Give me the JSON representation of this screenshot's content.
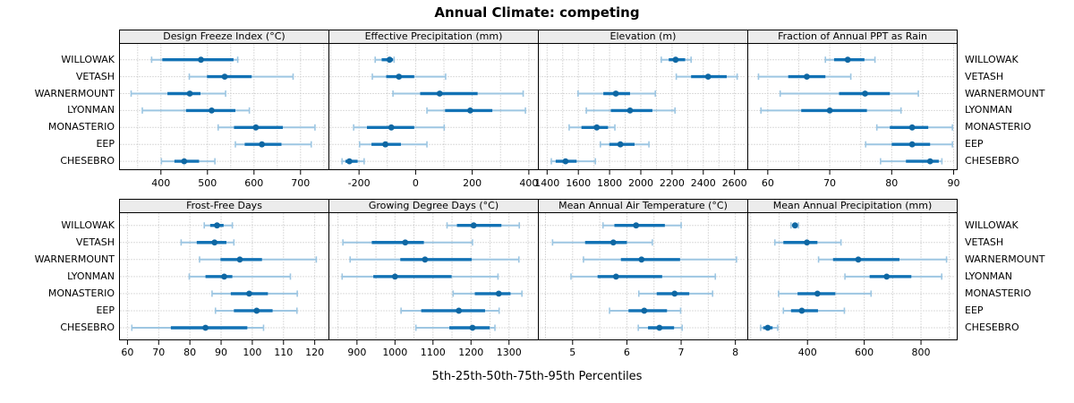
{
  "title": "Annual Climate: competing",
  "xlabel": "5th-25th-50th-75th-95th Percentiles",
  "sites": [
    "WILLOWAK",
    "VETASH",
    "WARNERMOUNT",
    "LYONMAN",
    "MONASTERIO",
    "EEP",
    "CHESEBRO"
  ],
  "colors": {
    "whisker": "#9dc6e2",
    "iqr": "#1272b5",
    "dot": "#0e67a3",
    "strip_bg": "#ececec",
    "grid": "#b8b8b8",
    "border": "#000000"
  },
  "chart_data": {
    "type": "dotplot-percentiles-trellis",
    "percentile_labels": [
      "5th",
      "25th",
      "50th",
      "75th",
      "95th"
    ],
    "layout": {
      "rows": 2,
      "cols": 4
    },
    "sites_top_to_bottom": [
      "WILLOWAK",
      "VETASH",
      "WARNERMOUNT",
      "LYONMAN",
      "MONASTERIO",
      "EEP",
      "CHESEBRO"
    ],
    "panels": [
      {
        "title": "Design Freeze Index (°C)",
        "row": 0,
        "col": 0,
        "xlim": [
          310,
          760
        ],
        "ticks": [
          400,
          500,
          600,
          700
        ],
        "gridlines": [
          350,
          400,
          450,
          500,
          550,
          600,
          650,
          700,
          750
        ],
        "values": [
          [
            380,
            403,
            486,
            556,
            565
          ],
          [
            461,
            499,
            537,
            595,
            684
          ],
          [
            336,
            414,
            462,
            485,
            539
          ],
          [
            360,
            454,
            509,
            560,
            590
          ],
          [
            523,
            557,
            604,
            662,
            731
          ],
          [
            560,
            580,
            617,
            659,
            723
          ],
          [
            401,
            429,
            450,
            482,
            516
          ]
        ]
      },
      {
        "title": "Effective Precipitation (mm)",
        "row": 0,
        "col": 1,
        "xlim": [
          -308,
          432
        ],
        "ticks": [
          -200,
          0,
          200,
          400
        ],
        "gridlines": [
          -300,
          -200,
          -100,
          0,
          100,
          200,
          300,
          400
        ],
        "values": [
          [
            -143,
            -120,
            -92,
            -80,
            -76
          ],
          [
            -153,
            -104,
            -59,
            -5,
            106
          ],
          [
            -80,
            16,
            85,
            219,
            380
          ],
          [
            40,
            104,
            193,
            271,
            388
          ],
          [
            -219,
            -172,
            -86,
            -5,
            101
          ],
          [
            -198,
            -156,
            -107,
            -52,
            40
          ],
          [
            -260,
            -248,
            -234,
            -205,
            -182
          ]
        ]
      },
      {
        "title": "Elevation (m)",
        "row": 0,
        "col": 2,
        "xlim": [
          1341,
          2682
        ],
        "ticks": [
          1400,
          1600,
          1800,
          2000,
          2200,
          2400,
          2600
        ],
        "gridlines": [
          1400,
          1500,
          1600,
          1700,
          1800,
          1900,
          2000,
          2100,
          2200,
          2300,
          2400,
          2500,
          2600
        ],
        "values": [
          [
            2131,
            2179,
            2223,
            2284,
            2322
          ],
          [
            2227,
            2322,
            2431,
            2550,
            2617
          ],
          [
            1598,
            1760,
            1840,
            1931,
            2093
          ],
          [
            1651,
            1808,
            1931,
            2074,
            2219
          ],
          [
            1541,
            1620,
            1718,
            1790,
            1834
          ],
          [
            1741,
            1798,
            1869,
            1960,
            2052
          ],
          [
            1427,
            1455,
            1518,
            1589,
            1709
          ]
        ]
      },
      {
        "title": "Fraction of Annual PPT as Rain",
        "row": 0,
        "col": 3,
        "xlim": [
          56.7,
          90.5
        ],
        "ticks": [
          60,
          70,
          80,
          90
        ],
        "gridlines": [
          60,
          65,
          70,
          75,
          80,
          85,
          90
        ],
        "values": [
          [
            69.3,
            70.7,
            72.9,
            75.6,
            77.3
          ],
          [
            58.5,
            63.3,
            66.3,
            69.3,
            73.4
          ],
          [
            62.0,
            71.5,
            75.7,
            79.7,
            84.3
          ],
          [
            58.9,
            65.4,
            70.0,
            76.0,
            81.5
          ],
          [
            77.6,
            79.7,
            83.3,
            85.9,
            89.8
          ],
          [
            75.8,
            80.0,
            83.3,
            86.2,
            89.8
          ],
          [
            78.2,
            82.3,
            86.2,
            87.6,
            88.1
          ]
        ]
      },
      {
        "title": "Frost-Free Days",
        "row": 1,
        "col": 0,
        "xlim": [
          57.3,
          124.4
        ],
        "ticks": [
          60,
          70,
          80,
          90,
          100,
          110,
          120
        ],
        "gridlines": [
          60,
          70,
          80,
          90,
          100,
          110,
          120
        ],
        "values": [
          [
            84.6,
            86.5,
            88.7,
            90.8,
            93.6
          ],
          [
            77.2,
            82.2,
            87.9,
            91.7,
            94.1
          ],
          [
            83.1,
            89.8,
            96.0,
            103.1,
            120.5
          ],
          [
            79.8,
            85.0,
            91.0,
            93.6,
            112.2
          ],
          [
            87.1,
            93.1,
            99.0,
            105.0,
            114.4
          ],
          [
            88.2,
            94.1,
            101.4,
            106.5,
            114.3
          ],
          [
            61.4,
            73.9,
            85.0,
            98.4,
            103.6
          ]
        ]
      },
      {
        "title": "Growing Degree Days (°C)",
        "row": 1,
        "col": 1,
        "xlim": [
          825,
          1376
        ],
        "ticks": [
          900,
          1000,
          1100,
          1200,
          1300
        ],
        "gridlines": [
          850,
          900,
          950,
          1000,
          1050,
          1100,
          1150,
          1200,
          1250,
          1300,
          1350
        ],
        "values": [
          [
            1137,
            1163,
            1207,
            1280,
            1327
          ],
          [
            863,
            939,
            1027,
            1076,
            1204
          ],
          [
            882,
            1014,
            1079,
            1202,
            1326
          ],
          [
            861,
            943,
            1000,
            1149,
            1271
          ],
          [
            1153,
            1210,
            1273,
            1304,
            1334
          ],
          [
            1016,
            1069,
            1168,
            1237,
            1274
          ],
          [
            1055,
            1143,
            1204,
            1249,
            1263
          ]
        ]
      },
      {
        "title": "Mean Annual Air Temperature (°C)",
        "row": 1,
        "col": 2,
        "xlim": [
          4.36,
          8.22
        ],
        "ticks": [
          5,
          6,
          7,
          8
        ],
        "gridlines": [
          4.5,
          5,
          5.5,
          6,
          6.5,
          7,
          7.5,
          8
        ],
        "values": [
          [
            5.56,
            5.77,
            6.17,
            6.7,
            7.0
          ],
          [
            4.63,
            5.23,
            5.75,
            6.0,
            6.47
          ],
          [
            5.2,
            5.89,
            6.27,
            6.98,
            8.02
          ],
          [
            4.97,
            5.46,
            5.8,
            6.65,
            7.63
          ],
          [
            6.22,
            6.55,
            6.88,
            7.15,
            7.58
          ],
          [
            5.68,
            6.03,
            6.32,
            6.74,
            6.99
          ],
          [
            6.21,
            6.39,
            6.6,
            6.87,
            7.02
          ]
        ]
      },
      {
        "title": "Mean Annual Precipitation (mm)",
        "row": 1,
        "col": 3,
        "xlim": [
          188,
          926
        ],
        "ticks": [
          400,
          600,
          800
        ],
        "gridlines": [
          200,
          300,
          400,
          500,
          600,
          700,
          800,
          900
        ],
        "values": [
          [
            342,
            348,
            356,
            362,
            368
          ],
          [
            285,
            315,
            398,
            435,
            518
          ],
          [
            439,
            490,
            579,
            724,
            890
          ],
          [
            532,
            619,
            679,
            766,
            873
          ],
          [
            298,
            365,
            435,
            498,
            624
          ],
          [
            315,
            342,
            380,
            437,
            530
          ],
          [
            235,
            244,
            260,
            277,
            295
          ]
        ]
      }
    ]
  }
}
